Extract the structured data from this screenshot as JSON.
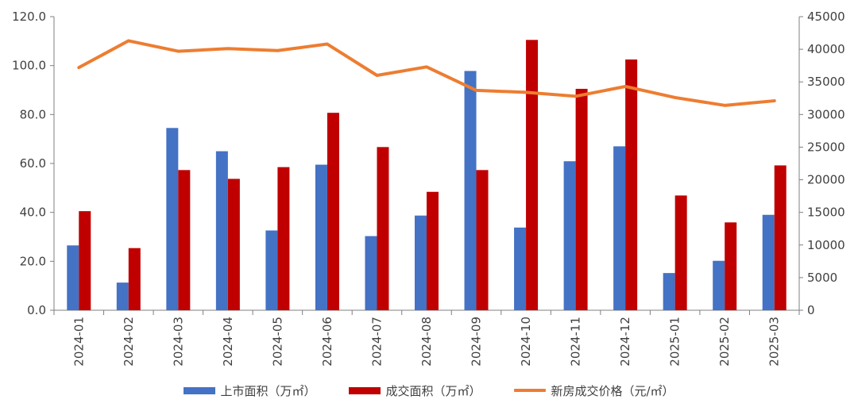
{
  "chart_data": {
    "type": "bar",
    "categories": [
      "2024-01",
      "2024-02",
      "2024-03",
      "2024-04",
      "2024-05",
      "2024-06",
      "2024-07",
      "2024-08",
      "2024-09",
      "2024-10",
      "2024-11",
      "2024-12",
      "2025-01",
      "2025-02",
      "2025-03"
    ],
    "series": [
      {
        "name": "上市面积（万㎡）",
        "type": "bar",
        "axis": "left",
        "color": "#4472C4",
        "values": [
          26.5,
          11.3,
          74.5,
          65.0,
          32.6,
          59.5,
          30.3,
          38.7,
          97.8,
          33.8,
          60.9,
          67.0,
          15.2,
          20.2,
          39.0
        ]
      },
      {
        "name": "成交面积（万㎡）",
        "type": "bar",
        "axis": "left",
        "color": "#C00000",
        "values": [
          40.5,
          25.4,
          57.3,
          53.7,
          58.5,
          80.7,
          66.7,
          48.4,
          57.3,
          110.5,
          90.5,
          102.5,
          46.9,
          35.9,
          59.2
        ]
      },
      {
        "name": "新房成交价格（元/㎡）",
        "type": "line",
        "axis": "right",
        "color": "#ED7D31",
        "values": [
          37200,
          41300,
          39700,
          40100,
          39800,
          40800,
          36000,
          37300,
          33700,
          33400,
          32800,
          34300,
          32600,
          31400,
          32100
        ]
      }
    ],
    "y_left": {
      "min": 0,
      "max": 120,
      "ticks": [
        "0.0",
        "20.0",
        "40.0",
        "60.0",
        "80.0",
        "100.0",
        "120.0"
      ]
    },
    "y_right": {
      "min": 0,
      "max": 45000,
      "ticks": [
        "0",
        "5000",
        "10000",
        "15000",
        "20000",
        "25000",
        "30000",
        "35000",
        "40000",
        "45000"
      ]
    },
    "grid": false,
    "legend_position": "bottom",
    "xlabel": "",
    "ylabel": ""
  }
}
